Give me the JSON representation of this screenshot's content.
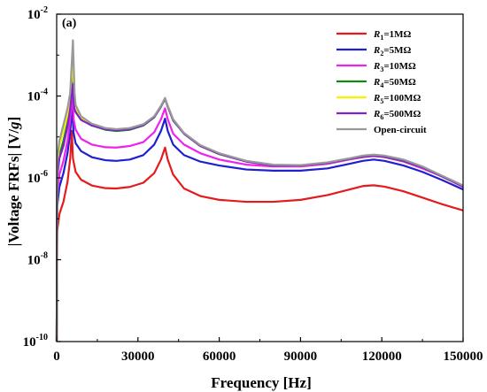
{
  "chart_data": {
    "type": "line",
    "panel_label": "(a)",
    "xlabel": "Frequency [Hz]",
    "ylabel_prefix": "|Voltage FRFs| [V/",
    "ylabel_italic": "g",
    "ylabel_suffix": "]",
    "xlim": [
      0,
      150000
    ],
    "ylim": [
      1e-10,
      0.01
    ],
    "yscale": "log",
    "xticks": [
      0,
      30000,
      60000,
      90000,
      120000,
      150000
    ],
    "yticks": [
      {
        "value": 1e-10,
        "base": "10",
        "exp": "-10"
      },
      {
        "value": 1e-08,
        "base": "10",
        "exp": "-8"
      },
      {
        "value": 1e-06,
        "base": "10",
        "exp": "-6"
      },
      {
        "value": 0.0001,
        "base": "10",
        "exp": "-4"
      },
      {
        "value": 0.01,
        "base": "10",
        "exp": "-2"
      }
    ],
    "grid": false,
    "legend_position": "top-right",
    "series": [
      {
        "label_var": "R",
        "label_sub": "1",
        "label_rest": "=1MΩ",
        "color": "#e41a1c",
        "points": [
          [
            0,
            1e-10
          ],
          [
            200,
            5e-08
          ],
          [
            1000,
            1.3e-07
          ],
          [
            2500,
            2.6e-07
          ],
          [
            4000,
            8e-07
          ],
          [
            5000,
            3e-06
          ],
          [
            5600,
            1.4e-05
          ],
          [
            6000,
            3e-06
          ],
          [
            7000,
            1.4e-06
          ],
          [
            9000,
            9e-07
          ],
          [
            13000,
            6.5e-07
          ],
          [
            18000,
            5.6e-07
          ],
          [
            22000,
            5.5e-07
          ],
          [
            27000,
            6e-07
          ],
          [
            32000,
            7.6e-07
          ],
          [
            36000,
            1.3e-06
          ],
          [
            38500,
            2.8e-06
          ],
          [
            40000,
            5.5e-06
          ],
          [
            41000,
            2.8e-06
          ],
          [
            43000,
            1.2e-06
          ],
          [
            47000,
            5.5e-07
          ],
          [
            53000,
            3.6e-07
          ],
          [
            60000,
            2.9e-07
          ],
          [
            70000,
            2.6e-07
          ],
          [
            80000,
            2.6e-07
          ],
          [
            90000,
            2.9e-07
          ],
          [
            100000,
            3.8e-07
          ],
          [
            108000,
            5.2e-07
          ],
          [
            113000,
            6.3e-07
          ],
          [
            117000,
            6.6e-07
          ],
          [
            121000,
            6.1e-07
          ],
          [
            128000,
            4.7e-07
          ],
          [
            135000,
            3.3e-07
          ],
          [
            142000,
            2.3e-07
          ],
          [
            150000,
            1.6e-07
          ]
        ]
      },
      {
        "label_var": "R",
        "label_sub": "2",
        "label_rest": "=5MΩ",
        "color": "#1f1fd0",
        "points": [
          [
            0,
            1e-10
          ],
          [
            200,
            2e-07
          ],
          [
            1000,
            6e-07
          ],
          [
            2500,
            1.3e-06
          ],
          [
            4000,
            4e-06
          ],
          [
            5000,
            1.3e-05
          ],
          [
            5700,
            6e-05
          ],
          [
            6200,
            1.3e-05
          ],
          [
            7000,
            7e-06
          ],
          [
            9000,
            4.5e-06
          ],
          [
            13000,
            3.2e-06
          ],
          [
            18000,
            2.7e-06
          ],
          [
            22000,
            2.6e-06
          ],
          [
            27000,
            2.8e-06
          ],
          [
            32000,
            3.6e-06
          ],
          [
            36000,
            6.5e-06
          ],
          [
            38500,
            1.4e-05
          ],
          [
            40000,
            2.8e-05
          ],
          [
            41000,
            1.4e-05
          ],
          [
            43000,
            6.5e-06
          ],
          [
            47000,
            3.6e-06
          ],
          [
            53000,
            2.5e-06
          ],
          [
            60000,
            2e-06
          ],
          [
            70000,
            1.6e-06
          ],
          [
            80000,
            1.5e-06
          ],
          [
            90000,
            1.5e-06
          ],
          [
            100000,
            1.7e-06
          ],
          [
            108000,
            2.2e-06
          ],
          [
            113000,
            2.6e-06
          ],
          [
            117000,
            2.8e-06
          ],
          [
            121000,
            2.6e-06
          ],
          [
            128000,
            2e-06
          ],
          [
            135000,
            1.4e-06
          ],
          [
            142000,
            9e-07
          ],
          [
            150000,
            5.2e-07
          ]
        ]
      },
      {
        "label_var": "R",
        "label_sub": "3",
        "label_rest": "=10MΩ",
        "color": "#ee22ee",
        "points": [
          [
            0,
            1e-10
          ],
          [
            200,
            4e-07
          ],
          [
            1000,
            1.2e-06
          ],
          [
            2500,
            2.6e-06
          ],
          [
            4000,
            8e-06
          ],
          [
            5000,
            2.6e-05
          ],
          [
            5800,
            0.00012
          ],
          [
            6300,
            2.6e-05
          ],
          [
            7000,
            1.5e-05
          ],
          [
            9000,
            9e-06
          ],
          [
            13000,
            6.5e-06
          ],
          [
            18000,
            5.6e-06
          ],
          [
            22000,
            5.5e-06
          ],
          [
            27000,
            6e-06
          ],
          [
            32000,
            7.5e-06
          ],
          [
            36000,
            1.3e-05
          ],
          [
            38500,
            2.7e-05
          ],
          [
            40000,
            5e-05
          ],
          [
            41000,
            2.7e-05
          ],
          [
            43000,
            1.2e-05
          ],
          [
            47000,
            6.5e-06
          ],
          [
            53000,
            4e-06
          ],
          [
            60000,
            2.8e-06
          ],
          [
            70000,
            2.1e-06
          ],
          [
            80000,
            1.9e-06
          ],
          [
            90000,
            1.9e-06
          ],
          [
            100000,
            2.2e-06
          ],
          [
            108000,
            2.8e-06
          ],
          [
            113000,
            3.2e-06
          ],
          [
            117000,
            3.4e-06
          ],
          [
            121000,
            3.2e-06
          ],
          [
            128000,
            2.5e-06
          ],
          [
            135000,
            1.7e-06
          ],
          [
            142000,
            1.1e-06
          ],
          [
            150000,
            6e-07
          ]
        ]
      },
      {
        "label_var": "R",
        "label_sub": "4",
        "label_rest": "=50MΩ",
        "color": "#118811",
        "points": [
          [
            0,
            1e-10
          ],
          [
            200,
            1.2e-06
          ],
          [
            1000,
            3.5e-06
          ],
          [
            2500,
            8e-06
          ],
          [
            4000,
            2.2e-05
          ],
          [
            5000,
            6e-05
          ],
          [
            5900,
            0.0006
          ],
          [
            6400,
            6e-05
          ],
          [
            7000,
            4.2e-05
          ],
          [
            9000,
            2.7e-05
          ],
          [
            13000,
            1.9e-05
          ],
          [
            18000,
            1.5e-05
          ],
          [
            22000,
            1.4e-05
          ],
          [
            27000,
            1.5e-05
          ],
          [
            32000,
            1.9e-05
          ],
          [
            36000,
            3e-05
          ],
          [
            38500,
            5.5e-05
          ],
          [
            40000,
            8.5e-05
          ],
          [
            41000,
            5.5e-05
          ],
          [
            43000,
            2.5e-05
          ],
          [
            47000,
            1.2e-05
          ],
          [
            53000,
            6e-06
          ],
          [
            60000,
            3.8e-06
          ],
          [
            70000,
            2.5e-06
          ],
          [
            80000,
            2e-06
          ],
          [
            90000,
            2e-06
          ],
          [
            100000,
            2.3e-06
          ],
          [
            108000,
            2.9e-06
          ],
          [
            113000,
            3.3e-06
          ],
          [
            117000,
            3.5e-06
          ],
          [
            121000,
            3.3e-06
          ],
          [
            128000,
            2.6e-06
          ],
          [
            135000,
            1.8e-06
          ],
          [
            142000,
            1.1e-06
          ],
          [
            150000,
            6.2e-07
          ]
        ]
      },
      {
        "label_var": "R",
        "label_sub": "5",
        "label_rest": "=100MΩ",
        "color": "#f5f500",
        "points": [
          [
            0,
            1e-10
          ],
          [
            200,
            2.2e-06
          ],
          [
            1000,
            6e-06
          ],
          [
            2500,
            1.4e-05
          ],
          [
            4000,
            3.5e-05
          ],
          [
            5000,
            8.5e-05
          ],
          [
            5950,
            0.001
          ],
          [
            6450,
            9e-05
          ],
          [
            7000,
            5.2e-05
          ],
          [
            9000,
            3e-05
          ],
          [
            13000,
            2e-05
          ],
          [
            18000,
            1.6e-05
          ],
          [
            22000,
            1.5e-05
          ],
          [
            27000,
            1.6e-05
          ],
          [
            32000,
            2e-05
          ],
          [
            36000,
            3.1e-05
          ],
          [
            38500,
            5.6e-05
          ],
          [
            40000,
            8.7e-05
          ],
          [
            41000,
            5.6e-05
          ],
          [
            43000,
            2.6e-05
          ],
          [
            47000,
            1.2e-05
          ],
          [
            53000,
            6.1e-06
          ],
          [
            60000,
            3.9e-06
          ],
          [
            70000,
            2.5e-06
          ],
          [
            80000,
            2e-06
          ],
          [
            90000,
            2e-06
          ],
          [
            100000,
            2.3e-06
          ],
          [
            108000,
            2.9e-06
          ],
          [
            113000,
            3.4e-06
          ],
          [
            117000,
            3.6e-06
          ],
          [
            121000,
            3.4e-06
          ],
          [
            128000,
            2.7e-06
          ],
          [
            135000,
            1.8e-06
          ],
          [
            142000,
            1.1e-06
          ],
          [
            150000,
            6.3e-07
          ]
        ]
      },
      {
        "label_var": "R",
        "label_sub": "6",
        "label_rest": "=500MΩ",
        "color": "#7f22cc",
        "points": [
          [
            0,
            1e-10
          ],
          [
            200,
            1e-06
          ],
          [
            1000,
            3e-06
          ],
          [
            2500,
            6e-06
          ],
          [
            4000,
            1.8e-05
          ],
          [
            5000,
            5e-05
          ],
          [
            6000,
            0.0002
          ],
          [
            6500,
            5e-05
          ],
          [
            7000,
            4e-05
          ],
          [
            9000,
            2.6e-05
          ],
          [
            13000,
            1.9e-05
          ],
          [
            18000,
            1.55e-05
          ],
          [
            22000,
            1.45e-05
          ],
          [
            27000,
            1.55e-05
          ],
          [
            32000,
            1.95e-05
          ],
          [
            36000,
            3.05e-05
          ],
          [
            38500,
            5.5e-05
          ],
          [
            40000,
            8.6e-05
          ],
          [
            41000,
            5.5e-05
          ],
          [
            43000,
            2.55e-05
          ],
          [
            47000,
            1.2e-05
          ],
          [
            53000,
            6e-06
          ],
          [
            60000,
            3.85e-06
          ],
          [
            70000,
            2.5e-06
          ],
          [
            80000,
            2e-06
          ],
          [
            90000,
            2e-06
          ],
          [
            100000,
            2.3e-06
          ],
          [
            108000,
            2.9e-06
          ],
          [
            113000,
            3.35e-06
          ],
          [
            117000,
            3.55e-06
          ],
          [
            121000,
            3.35e-06
          ],
          [
            128000,
            2.65e-06
          ],
          [
            135000,
            1.8e-06
          ],
          [
            142000,
            1.1e-06
          ],
          [
            150000,
            6.2e-07
          ]
        ]
      },
      {
        "label_var": "",
        "label_sub": "",
        "label_rest": "Open-circuit",
        "color": "#999999",
        "points": [
          [
            0,
            1e-10
          ],
          [
            200,
            3e-06
          ],
          [
            1000,
            8e-06
          ],
          [
            2500,
            2e-05
          ],
          [
            4000,
            5e-05
          ],
          [
            5000,
            0.00012
          ],
          [
            6000,
            0.0023
          ],
          [
            6600,
            0.00012
          ],
          [
            7000,
            6e-05
          ],
          [
            9000,
            3.2e-05
          ],
          [
            13000,
            2.1e-05
          ],
          [
            18000,
            1.65e-05
          ],
          [
            22000,
            1.55e-05
          ],
          [
            27000,
            1.65e-05
          ],
          [
            32000,
            2.05e-05
          ],
          [
            36000,
            3.2e-05
          ],
          [
            38500,
            5.8e-05
          ],
          [
            40000,
            9e-05
          ],
          [
            41000,
            5.8e-05
          ],
          [
            43000,
            2.7e-05
          ],
          [
            47000,
            1.25e-05
          ],
          [
            53000,
            6.3e-06
          ],
          [
            60000,
            4e-06
          ],
          [
            70000,
            2.6e-06
          ],
          [
            80000,
            2.1e-06
          ],
          [
            90000,
            2.05e-06
          ],
          [
            100000,
            2.4e-06
          ],
          [
            108000,
            3e-06
          ],
          [
            113000,
            3.5e-06
          ],
          [
            117000,
            3.7e-06
          ],
          [
            121000,
            3.5e-06
          ],
          [
            128000,
            2.8e-06
          ],
          [
            135000,
            1.9e-06
          ],
          [
            142000,
            1.15e-06
          ],
          [
            150000,
            6.5e-07
          ]
        ]
      }
    ]
  }
}
